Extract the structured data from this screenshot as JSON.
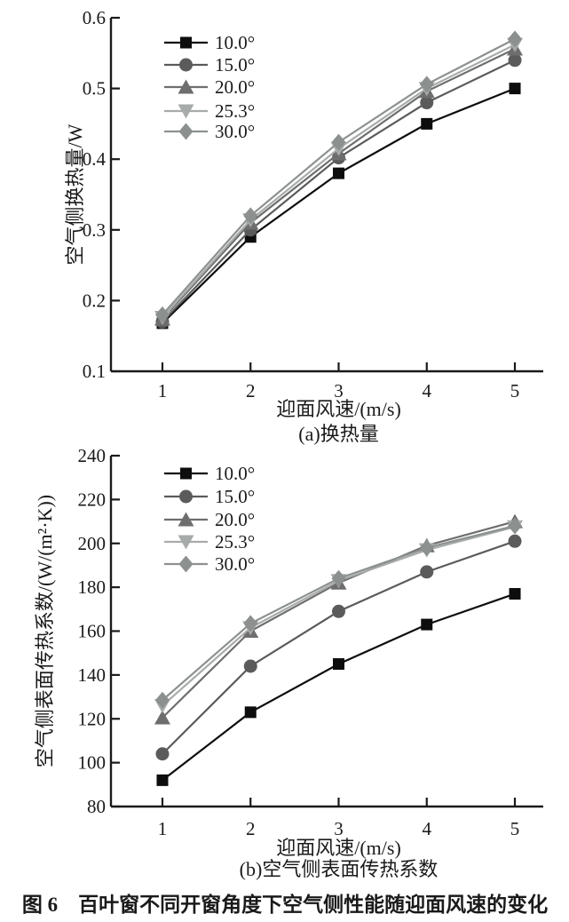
{
  "figure": {
    "caption": "图 6　百叶窗不同开窗角度下空气侧性能随迎面风速的变化"
  },
  "chart_data": [
    {
      "id": "a",
      "type": "line",
      "subtitle": "(a)换热量",
      "xlabel": "迎面风速/(m/s)",
      "ylabel": "空气侧换热量/W",
      "x": [
        1,
        2,
        3,
        4,
        5
      ],
      "xtick_labels": [
        "1",
        "2",
        "3",
        "4",
        "5"
      ],
      "ytick_labels": [
        "0.1",
        "0.2",
        "0.3",
        "0.4",
        "0.5",
        "0.6"
      ],
      "xlim": [
        0.416,
        5.322
      ],
      "ylim": [
        0.1,
        0.6
      ],
      "grid": false,
      "legend_position": "upper-left-inside",
      "series": [
        {
          "name": "10.0°",
          "marker": "square",
          "color": "#0d0d0d",
          "values": [
            0.168,
            0.29,
            0.38,
            0.45,
            0.5
          ]
        },
        {
          "name": "15.0°",
          "marker": "circle",
          "color": "#5b5b5b",
          "values": [
            0.17,
            0.3,
            0.402,
            0.48,
            0.54
          ]
        },
        {
          "name": "20.0°",
          "marker": "triangle-up",
          "color": "#6e6e6e",
          "values": [
            0.174,
            0.31,
            0.408,
            0.496,
            0.556
          ]
        },
        {
          "name": "25.3°",
          "marker": "triangle-down",
          "color": "#a7abaa",
          "values": [
            0.176,
            0.314,
            0.415,
            0.5,
            0.562
          ]
        },
        {
          "name": "30.0°",
          "marker": "diamond",
          "color": "#8c9190",
          "values": [
            0.18,
            0.32,
            0.424,
            0.506,
            0.57
          ]
        }
      ]
    },
    {
      "id": "b",
      "type": "line",
      "subtitle": "(b)空气侧表面传热系数",
      "xlabel": "迎面风速/(m/s)",
      "ylabel": "空气侧表面传热系数/(W/(m²·K))",
      "x": [
        1,
        2,
        3,
        4,
        5
      ],
      "xtick_labels": [
        "1",
        "2",
        "3",
        "4",
        "5"
      ],
      "ytick_labels": [
        "80",
        "100",
        "120",
        "140",
        "160",
        "180",
        "200",
        "220",
        "240"
      ],
      "xlim": [
        0.416,
        5.322
      ],
      "ylim": [
        80,
        240
      ],
      "grid": false,
      "legend_position": "upper-left-inside",
      "series": [
        {
          "name": "10.0°",
          "marker": "square",
          "color": "#0d0d0d",
          "values": [
            92,
            123,
            145,
            163,
            177
          ]
        },
        {
          "name": "15.0°",
          "marker": "circle",
          "color": "#5b5b5b",
          "values": [
            104,
            144,
            169,
            187,
            201
          ]
        },
        {
          "name": "20.0°",
          "marker": "triangle-up",
          "color": "#6e6e6e",
          "values": [
            120.5,
            160,
            182,
            199,
            210
          ]
        },
        {
          "name": "25.3°",
          "marker": "triangle-down",
          "color": "#a7abaa",
          "values": [
            126,
            161.5,
            183,
            197,
            207.5
          ]
        },
        {
          "name": "30.0°",
          "marker": "diamond",
          "color": "#8c9190",
          "values": [
            128.5,
            163.5,
            184,
            198,
            208
          ]
        }
      ]
    }
  ]
}
